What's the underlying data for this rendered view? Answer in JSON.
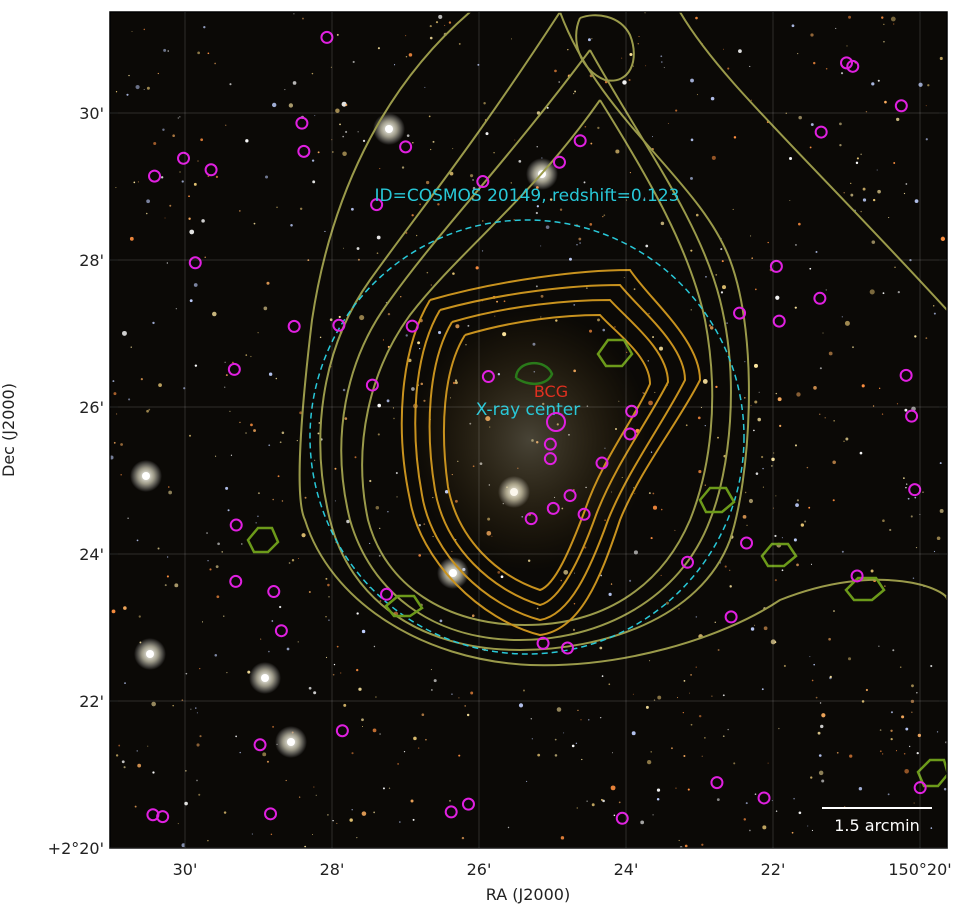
{
  "image": {
    "x_axis": {
      "label": "RA (J2000)",
      "ticks": [
        "30'",
        "28'",
        "26'",
        "24'",
        "22'",
        "150°20'"
      ]
    },
    "y_axis": {
      "label": "Dec (J2000)",
      "ticks": [
        "30'",
        "28'",
        "26'",
        "24'",
        "22'",
        "+2°20'"
      ]
    },
    "annotations": {
      "id": "ID=COSMOS 20149, redshift=0.123",
      "bcg": "BCG",
      "xray": "X-ray center",
      "scale": "1.5 arcmin"
    }
  }
}
